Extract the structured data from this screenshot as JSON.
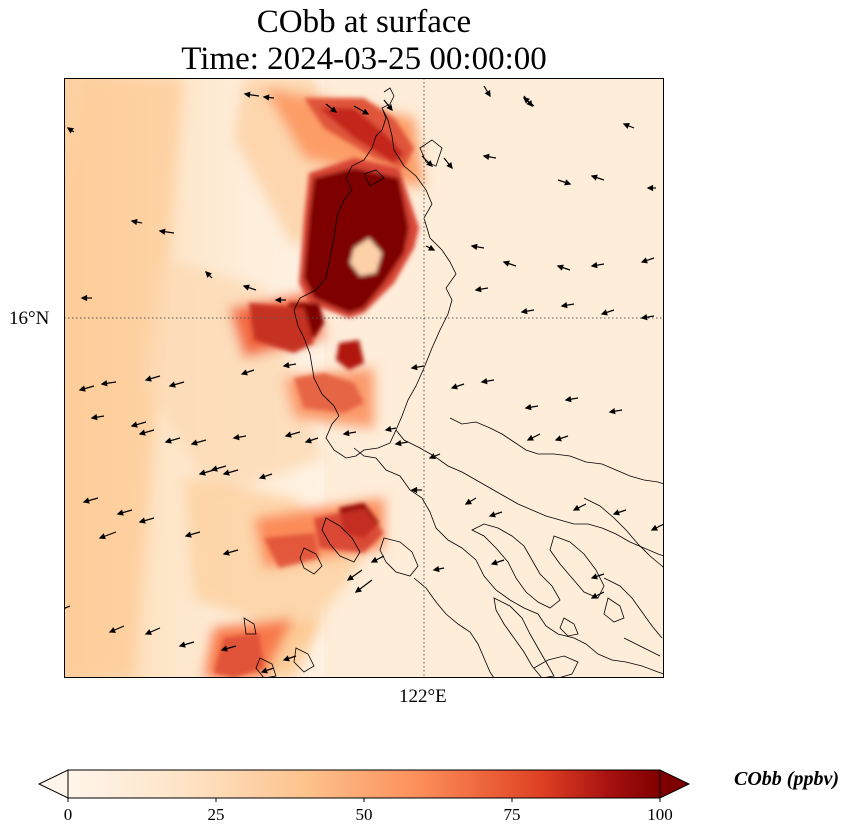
{
  "title": {
    "line1": "CObb at surface",
    "line2": "Time: 2024-03-25 00:00:00"
  },
  "axes": {
    "lat_tick": "16°N",
    "lon_tick": "122°E"
  },
  "colorbar": {
    "label": "CObb (ppbv)",
    "ticks": [
      "0",
      "25",
      "50",
      "75",
      "100"
    ],
    "min": 0,
    "max": 100,
    "extend": "both",
    "colormap": [
      "#fff5eb",
      "#fdd5ab",
      "#fd9f5e",
      "#e8572c",
      "#b31f07",
      "#7f0000"
    ]
  }
}
